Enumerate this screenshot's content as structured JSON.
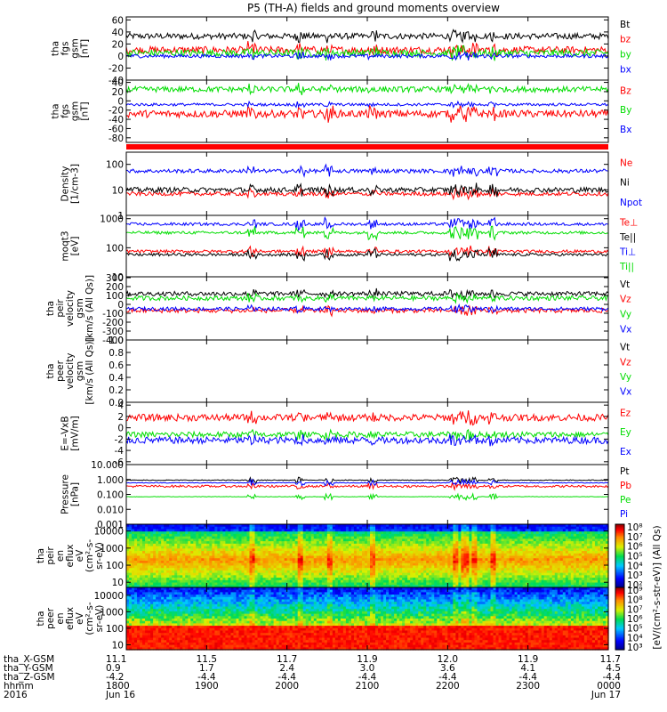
{
  "title": "P5 (TH-A) fields and ground moments overview",
  "colors": {
    "black": "#000000",
    "red": "#ff0000",
    "green": "#00dd00",
    "blue": "#0000ff"
  },
  "chart_data": [
    {
      "type": "line",
      "ylabel_lines": [
        "tha",
        "fgs",
        "gsm",
        "[nT]"
      ],
      "yticks": [
        "60",
        "40",
        "20",
        "0",
        "-20",
        "-40"
      ],
      "ylim": [
        -40,
        65
      ],
      "series": [
        {
          "name": "Bt",
          "color": "black",
          "level": 33,
          "noise": 5
        },
        {
          "name": "bz",
          "color": "red",
          "level": 10,
          "noise": 6
        },
        {
          "name": "by",
          "color": "green",
          "level": 5,
          "noise": 6
        },
        {
          "name": "bx",
          "color": "blue",
          "level": 0,
          "noise": 3
        }
      ]
    },
    {
      "type": "line",
      "ylabel_lines": [
        "tha",
        "fgs",
        "gsm",
        "[nT]"
      ],
      "yticks": [
        "40",
        "20",
        "0",
        "-20",
        "-40",
        "-60",
        "-80"
      ],
      "ylim": [
        -90,
        45
      ],
      "series": [
        {
          "name": "Bz",
          "color": "red",
          "level": -28,
          "noise": 8
        },
        {
          "name": "By",
          "color": "green",
          "level": 25,
          "noise": 6
        },
        {
          "name": "Bx",
          "color": "blue",
          "level": -8,
          "noise": 3
        }
      ]
    },
    {
      "type": "line",
      "ylabel_lines": [
        "Density",
        "[1/cm-3]"
      ],
      "scale": "log",
      "yticks": [
        "100",
        "10",
        "1"
      ],
      "ylim": [
        1,
        300
      ],
      "series": [
        {
          "name": "Ne",
          "color": "red",
          "level": 7,
          "noise": 0.15
        },
        {
          "name": "Ni",
          "color": "black",
          "level": 10,
          "noise": 0.2
        },
        {
          "name": "Npot",
          "color": "blue",
          "level": 55,
          "noise": 0.15
        }
      ]
    },
    {
      "type": "line",
      "ylabel_lines": [
        "moqt3",
        "[eV]"
      ],
      "scale": "log",
      "yticks": [
        "1000",
        "100",
        "10"
      ],
      "ylim": [
        10,
        1300
      ],
      "series": [
        {
          "name": "Te⊥",
          "color": "red",
          "level": 75,
          "noise": 0.1
        },
        {
          "name": "Te||",
          "color": "black",
          "level": 58,
          "noise": 0.1
        },
        {
          "name": "Ti⊥",
          "color": "blue",
          "level": 650,
          "noise": 0.1
        },
        {
          "name": "Ti||",
          "color": "green",
          "level": 330,
          "noise": 0.1
        }
      ]
    },
    {
      "type": "line",
      "ylabel_lines": [
        "tha",
        "peir",
        "velocity",
        "gsm",
        "[km/s (All Qs)]"
      ],
      "yticks": [
        "300",
        "200",
        "100",
        "0",
        "-100",
        "-200",
        "-300",
        "-400"
      ],
      "ylim": [
        -400,
        310
      ],
      "series": [
        {
          "name": "Vt",
          "color": "black",
          "level": 120,
          "noise": 25
        },
        {
          "name": "Vz",
          "color": "red",
          "level": -70,
          "noise": 25
        },
        {
          "name": "Vy",
          "color": "green",
          "level": 70,
          "noise": 25
        },
        {
          "name": "Vx",
          "color": "blue",
          "level": -50,
          "noise": 20
        }
      ]
    },
    {
      "type": "line",
      "ylabel_lines": [
        "tha",
        "peer",
        "velocity",
        "gsm",
        "[km/s (All Qs)]"
      ],
      "yticks": [
        "1.0",
        "0.8",
        "0.6",
        "0.4",
        "0.2",
        "0.0"
      ],
      "ylim": [
        0,
        1
      ],
      "series": [
        {
          "name": "Vt",
          "color": "black",
          "level": null,
          "noise": 0
        },
        {
          "name": "Vz",
          "color": "red",
          "level": null,
          "noise": 0
        },
        {
          "name": "Vy",
          "color": "green",
          "level": null,
          "noise": 0
        },
        {
          "name": "Vx",
          "color": "blue",
          "level": null,
          "noise": 0
        }
      ]
    },
    {
      "type": "line",
      "ylabel_lines": [
        "E=-VxB",
        "[mV/m]"
      ],
      "yticks": [
        "4",
        "2",
        "0",
        "-2",
        "-4",
        "-6"
      ],
      "ylim": [
        -6.5,
        4.5
      ],
      "series": [
        {
          "name": "Ez",
          "color": "red",
          "level": 1.8,
          "noise": 0.6
        },
        {
          "name": "Ey",
          "color": "green",
          "level": -1.2,
          "noise": 0.5
        },
        {
          "name": "Ex",
          "color": "blue",
          "level": -2.2,
          "noise": 0.6
        }
      ]
    },
    {
      "type": "line",
      "ylabel_lines": [
        "Pressure",
        "[nPa]"
      ],
      "scale": "log",
      "yticks": [
        "10.000",
        "1.000",
        "0.100",
        "0.010",
        "0.001"
      ],
      "ylim": [
        0.001,
        10
      ],
      "series": [
        {
          "name": "Pt",
          "color": "black",
          "level": 0.9,
          "noise": 0.05
        },
        {
          "name": "Pb",
          "color": "red",
          "level": 0.35,
          "noise": 0.15
        },
        {
          "name": "Pe",
          "color": "green",
          "level": 0.07,
          "noise": 0.03
        },
        {
          "name": "Pi",
          "color": "blue",
          "level": 0.6,
          "noise": 0.05
        }
      ]
    },
    {
      "type": "heatmap",
      "ylabel_lines": [
        "tha",
        "peir",
        "en",
        "eflux",
        "eV",
        "(cm²-s-",
        "sr-eV)"
      ],
      "scale": "log",
      "yticks": [
        "10000",
        "1000",
        "100",
        "10"
      ],
      "ylim": [
        5,
        25000
      ]
    },
    {
      "type": "heatmap",
      "ylabel_lines": [
        "tha",
        "peer",
        "en",
        "eflux",
        "eV",
        "(cm²-s-",
        "sr-eV)"
      ],
      "scale": "log",
      "yticks": [
        "10000",
        "1000",
        "100",
        "10"
      ],
      "ylim": [
        5,
        30000
      ]
    }
  ],
  "colorbars": [
    {
      "label": "[eV/(cm²-s-str-eV)] (All Qs)",
      "ticks": [
        "10⁸",
        "10⁷",
        "10⁶",
        "10⁵",
        "10⁴",
        "10³",
        "10²"
      ]
    },
    {
      "label": "[eV/(cm²-s-str-eV)] (All Qs)",
      "ticks": [
        "10⁹",
        "10⁸",
        "10⁷",
        "10⁶",
        "10⁵",
        "10⁴",
        "10³"
      ]
    }
  ],
  "footer": {
    "row_labels": [
      "tha_X-GSM",
      "tha_Y-GSM",
      "tha_Z-GSM",
      "hhmm",
      "2016"
    ],
    "columns": [
      {
        "vals": [
          "11.1",
          "0.9",
          "-4.2",
          "1800",
          "Jun 16"
        ]
      },
      {
        "vals": [
          "11.5",
          "1.7",
          "-4.4",
          "1900",
          ""
        ]
      },
      {
        "vals": [
          "11.7",
          "2.4",
          "-4.4",
          "2000",
          ""
        ]
      },
      {
        "vals": [
          "11.9",
          "3.0",
          "-4.4",
          "2100",
          ""
        ]
      },
      {
        "vals": [
          "12.0",
          "3.6",
          "-4.4",
          "2200",
          ""
        ]
      },
      {
        "vals": [
          "11.9",
          "4.1",
          "-4.4",
          "2300",
          ""
        ]
      },
      {
        "vals": [
          "11.7",
          "4.5",
          "-4.4",
          "0000",
          "Jun 17"
        ]
      }
    ]
  }
}
